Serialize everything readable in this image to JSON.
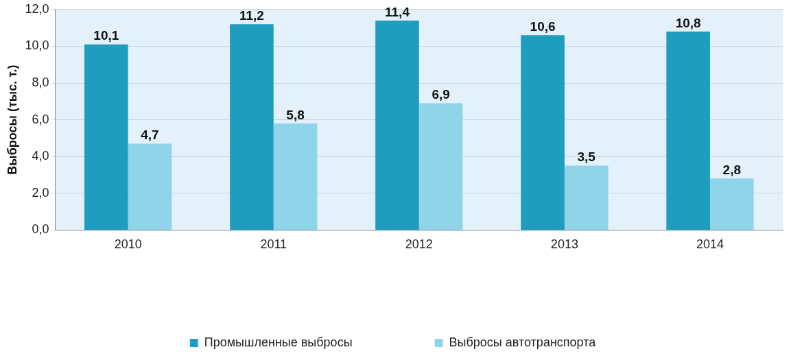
{
  "chart_data": {
    "type": "bar",
    "ylabel": "Выбросы (тыс. т.)",
    "categories": [
      "2010",
      "2011",
      "2012",
      "2013",
      "2014"
    ],
    "series": [
      {
        "name": "Промышленные выбросы",
        "color": "#1f9dbf",
        "values": [
          10.1,
          11.2,
          11.4,
          10.6,
          10.8
        ],
        "value_labels": [
          "10,1",
          "11,2",
          "11,4",
          "10,6",
          "10,8"
        ]
      },
      {
        "name": "Выбросы автотранспорта",
        "color": "#8fd4e8",
        "values": [
          4.7,
          5.8,
          6.9,
          3.5,
          2.8
        ],
        "value_labels": [
          "4,7",
          "5,8",
          "6,9",
          "3,5",
          "2,8"
        ]
      }
    ],
    "ylim": [
      0,
      12
    ],
    "yticks": [
      {
        "value": 0,
        "label": "0,0"
      },
      {
        "value": 2,
        "label": "2,0"
      },
      {
        "value": 4,
        "label": "4,0"
      },
      {
        "value": 6,
        "label": "6,0"
      },
      {
        "value": 8,
        "label": "8,0"
      },
      {
        "value": 10,
        "label": "10,0"
      },
      {
        "value": 12,
        "label": "12,0"
      }
    ],
    "grid": "y",
    "legend": "bottom"
  }
}
